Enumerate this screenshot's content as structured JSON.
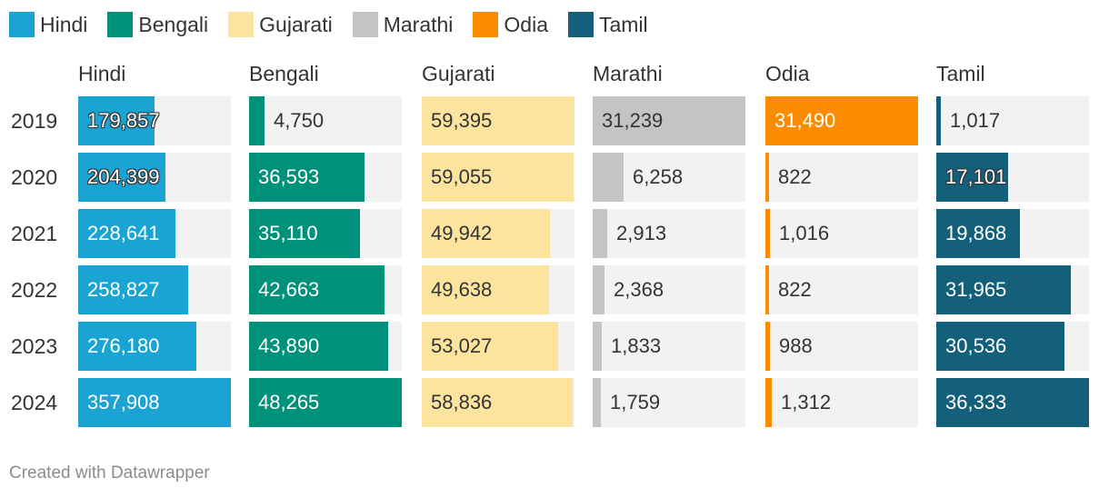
{
  "legend": [
    {
      "label": "Hindi",
      "color": "#1aa4d3"
    },
    {
      "label": "Bengali",
      "color": "#00917a"
    },
    {
      "label": "Gujarati",
      "color": "#fde49e"
    },
    {
      "label": "Marathi",
      "color": "#c4c4c4"
    },
    {
      "label": "Odia",
      "color": "#fb8c00"
    },
    {
      "label": "Tamil",
      "color": "#14607a"
    }
  ],
  "footer": "Created with Datawrapper",
  "chart_data": {
    "type": "bar",
    "layout": "small-multiples",
    "title": "",
    "categories": [
      "2019",
      "2020",
      "2021",
      "2022",
      "2023",
      "2024"
    ],
    "series": [
      {
        "name": "Hindi",
        "color": "#1aa4d3",
        "max": 357908,
        "values": [
          179857,
          204399,
          228641,
          258827,
          276180,
          357908
        ],
        "labels": [
          "179,857",
          "204,399",
          "228,641",
          "258,827",
          "276,180",
          "357,908"
        ],
        "label_style": [
          "outline",
          "outline",
          "inside",
          "inside",
          "inside",
          "inside"
        ]
      },
      {
        "name": "Bengali",
        "color": "#00917a",
        "max": 48265,
        "values": [
          4750,
          36593,
          35110,
          42663,
          43890,
          48265
        ],
        "labels": [
          "4,750",
          "36,593",
          "35,110",
          "42,663",
          "43,890",
          "48,265"
        ],
        "label_style": [
          "outside",
          "inside",
          "inside",
          "inside",
          "inside",
          "inside"
        ]
      },
      {
        "name": "Gujarati",
        "color": "#fde49e",
        "max": 59395,
        "values": [
          59395,
          59055,
          49942,
          49638,
          53027,
          58836
        ],
        "labels": [
          "59,395",
          "59,055",
          "49,942",
          "49,638",
          "53,027",
          "58,836"
        ],
        "label_style": [
          "dark",
          "dark",
          "dark",
          "dark",
          "dark",
          "dark"
        ]
      },
      {
        "name": "Marathi",
        "color": "#c4c4c4",
        "max": 31239,
        "values": [
          31239,
          6258,
          2913,
          2368,
          1833,
          1759
        ],
        "labels": [
          "31,239",
          "6,258",
          "2,913",
          "2,368",
          "1,833",
          "1,759"
        ],
        "label_style": [
          "dark",
          "outside",
          "outside",
          "outside",
          "outside",
          "outside"
        ]
      },
      {
        "name": "Odia",
        "color": "#fb8c00",
        "max": 31490,
        "values": [
          31490,
          822,
          1016,
          822,
          988,
          1312
        ],
        "labels": [
          "31,490",
          "822",
          "1,016",
          "822",
          "988",
          "1,312"
        ],
        "label_style": [
          "inside",
          "outside",
          "outside",
          "outside",
          "outside",
          "outside"
        ]
      },
      {
        "name": "Tamil",
        "color": "#14607a",
        "max": 36333,
        "values": [
          1017,
          17101,
          19868,
          31965,
          30536,
          36333
        ],
        "labels": [
          "1,017",
          "17,101",
          "19,868",
          "31,965",
          "30,536",
          "36,333"
        ],
        "label_style": [
          "outside",
          "outline",
          "inside",
          "inside",
          "inside",
          "inside"
        ]
      }
    ]
  }
}
